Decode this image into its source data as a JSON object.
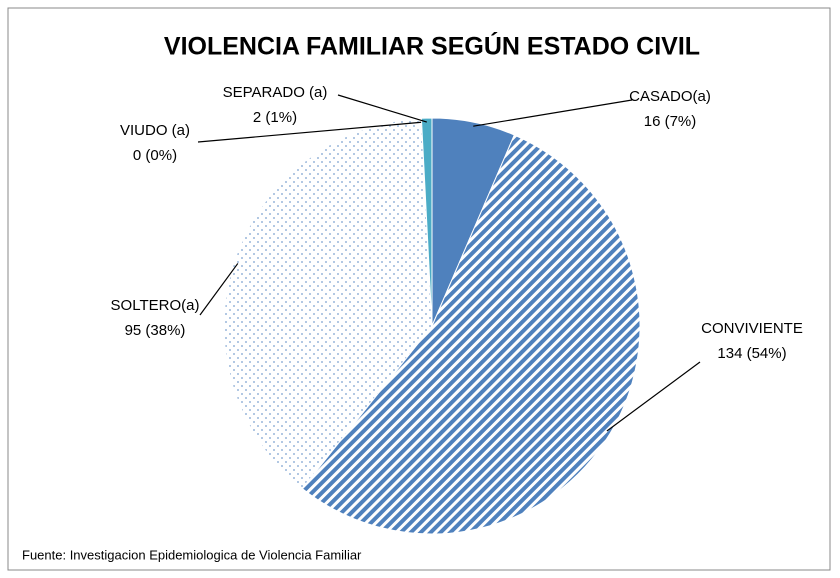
{
  "chart_data": {
    "type": "pie",
    "title": "VIOLENCIA FAMILIAR SEGÚN ESTADO CIVIL",
    "categories": [
      "CASADO(a)",
      "CONVIVIENTE",
      "SOLTERO(a)",
      "VIUDO (a)",
      "SEPARADO (a)"
    ],
    "values": [
      16,
      134,
      95,
      0,
      2
    ],
    "value_labels": [
      "16 (7%)",
      "134 (54%)",
      "95 (38%)",
      "0 (0%)",
      "2 (1%)"
    ],
    "colors": [
      "#4f81bd",
      "#4f81bd",
      "#7ba0cf",
      "#8064a2",
      "#4bacc6"
    ],
    "patterns": [
      "solid",
      "stripes",
      "dots",
      "solid",
      "solid"
    ],
    "source": "Fuente: Investigacion Epidemiologica de Violencia Familiar"
  }
}
